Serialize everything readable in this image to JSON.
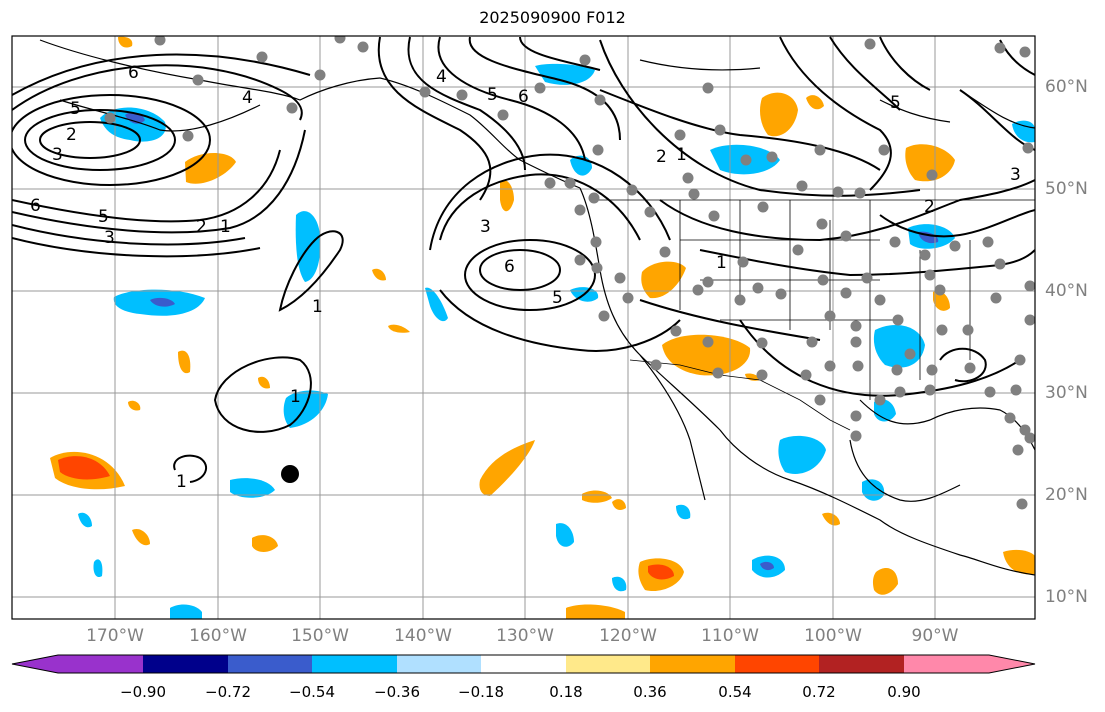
{
  "title": "2025090900 F012",
  "lon_labels": [
    "170°W",
    "160°W",
    "150°W",
    "140°W",
    "130°W",
    "120°W",
    "110°W",
    "100°W",
    "90°W"
  ],
  "lat_labels": [
    "60°N",
    "50°N",
    "40°N",
    "30°N",
    "20°N",
    "10°N"
  ],
  "colorbar": {
    "tick_labels": [
      "−0.90",
      "−0.72",
      "−0.54",
      "−0.36",
      "−0.18",
      "0.18",
      "0.36",
      "0.54",
      "0.72",
      "0.90"
    ],
    "colors": [
      "#9932cc",
      "#00008b",
      "#3a5ccc",
      "#00bfff",
      "#b0e0ff",
      "#ffffff",
      "#ffe98a",
      "#ffa500",
      "#ff4500",
      "#b22222",
      "#ff88aa"
    ]
  },
  "contour_labels": [
    "6",
    "5",
    "2",
    "3",
    "6",
    "5",
    "3",
    "2",
    "1",
    "4",
    "5",
    "6",
    "2",
    "1",
    "3",
    "6",
    "5",
    "1",
    "1",
    "1",
    "1",
    "4",
    "3",
    "2",
    "5"
  ],
  "map_data": {
    "projection": "cylindrical",
    "lon_range": [
      -180,
      -80
    ],
    "lat_range": [
      8,
      65
    ]
  }
}
